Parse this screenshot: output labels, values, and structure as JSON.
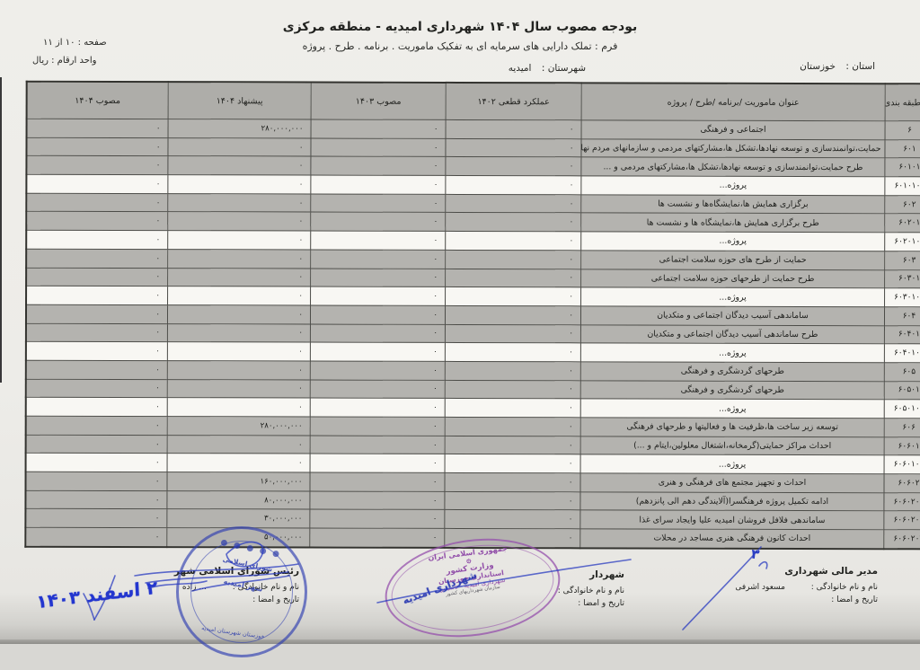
{
  "page": {
    "title": "بودجه مصوب سال ۱۴۰۴ شهرداری امیدیه - منطقه مرکزی",
    "subtitle": "فرم : تملک دارایی های سرمایه ای به تفکیک ماموریت . برنامه . طرح . پروژه",
    "page_info": "صفحه : ۱۰ از ۱۱",
    "unit": "واحد ارقام : ریال",
    "province_label": "استان :",
    "province": "خوزستان",
    "county_label": "شهرستان :",
    "county": "امیدیه"
  },
  "table": {
    "headers": [
      {
        "key": "code",
        "label": "کد طبقه بندی"
      },
      {
        "key": "title",
        "label": "عنوان ماموریت /برنامه /طرح / پروژه"
      },
      {
        "key": "y1402",
        "label": "عملکرد قطعی ۱۴۰۲"
      },
      {
        "key": "y1403",
        "label": "مصوب ۱۴۰۳"
      },
      {
        "key": "proposed",
        "label": "پیشنهاد ۱۴۰۴"
      },
      {
        "key": "approved",
        "label": "مصوب ۱۴۰۴"
      }
    ],
    "rows": [
      {
        "code": "۶",
        "title": "اجتماعی و فرهنگی",
        "y1402": "۰",
        "y1403": "۰",
        "proposed": "۲۸۰,۰۰۰,۰۰۰",
        "approved": "۰",
        "white": false
      },
      {
        "code": "۶۰۱",
        "title": "حمایت،توانمندسازی و توسعه نهادها،تشکل ها،مشارکتهای مردمی و سازمانهای مردم نهاد",
        "y1402": "۰",
        "y1403": "۰",
        "proposed": "۰",
        "approved": "۰",
        "white": false
      },
      {
        "code": "۶۰۱۰۱",
        "title": "طرح حمایت،توانمندسازی و توسعه نهادها،تشکل ها،مشارکتهای مردمی و ...",
        "y1402": "۰",
        "y1403": "۰",
        "proposed": "۰",
        "approved": "۰",
        "white": false
      },
      {
        "code": "۶۰۱۰۱۰۱",
        "title": "پروژه...",
        "y1402": "۰",
        "y1403": "۰",
        "proposed": "۰",
        "approved": "۰",
        "white": true
      },
      {
        "code": "۶۰۲",
        "title": "برگزاری همایش ها،نمایشگاه‌ها و نشست ها",
        "y1402": "۰",
        "y1403": "۰",
        "proposed": "۰",
        "approved": "۰",
        "white": false
      },
      {
        "code": "۶۰۲۰۱",
        "title": "طرح برگزاری همایش ها،نمایشگاه ها و نشست ها",
        "y1402": "۰",
        "y1403": "۰",
        "proposed": "۰",
        "approved": "۰",
        "white": false
      },
      {
        "code": "۶۰۲۰۱۰۱",
        "title": "پروژه...",
        "y1402": "۰",
        "y1403": "۰",
        "proposed": "۰",
        "approved": "۰",
        "white": true
      },
      {
        "code": "۶۰۳",
        "title": "حمایت از طرح های حوزه سلامت اجتماعی",
        "y1402": "۰",
        "y1403": "۰",
        "proposed": "۰",
        "approved": "۰",
        "white": false
      },
      {
        "code": "۶۰۳۰۱",
        "title": "طرح حمایت از طرحهای حوزه سلامت اجتماعی",
        "y1402": "۰",
        "y1403": "۰",
        "proposed": "۰",
        "approved": "۰",
        "white": false
      },
      {
        "code": "۶۰۳۰۱۰۱",
        "title": "پروژه...",
        "y1402": "۰",
        "y1403": "۰",
        "proposed": "۰",
        "approved": "۰",
        "white": true
      },
      {
        "code": "۶۰۴",
        "title": "ساماندهی آسیب دیدگان اجتماعی و متکدیان",
        "y1402": "۰",
        "y1403": "۰",
        "proposed": "۰",
        "approved": "۰",
        "white": false
      },
      {
        "code": "۶۰۴۰۱",
        "title": "طرح ساماندهی آسیب دیدگان اجتماعی و متکدیان",
        "y1402": "۰",
        "y1403": "۰",
        "proposed": "۰",
        "approved": "۰",
        "white": false
      },
      {
        "code": "۶۰۴۰۱۰۱",
        "title": "پروژه...",
        "y1402": "۰",
        "y1403": "۰",
        "proposed": "۰",
        "approved": "۰",
        "white": true
      },
      {
        "code": "۶۰۵",
        "title": "طرحهای گردشگری و فرهنگی",
        "y1402": "۰",
        "y1403": "۰",
        "proposed": "۰",
        "approved": "۰",
        "white": false
      },
      {
        "code": "۶۰۵۰۱",
        "title": "طرحهای گردشگری و فرهنگی",
        "y1402": "۰",
        "y1403": "۰",
        "proposed": "۰",
        "approved": "۰",
        "white": false
      },
      {
        "code": "۶۰۵۰۱۰۱",
        "title": "پروژه...",
        "y1402": "۰",
        "y1403": "۰",
        "proposed": "۰",
        "approved": "۰",
        "white": true
      },
      {
        "code": "۶۰۶",
        "title": "توسعه زیر ساخت ها،ظرفیت ها و فعالیتها و طرحهای فرهنگی",
        "y1402": "۰",
        "y1403": "۰",
        "proposed": "۲۸۰,۰۰۰,۰۰۰",
        "approved": "۰",
        "white": false
      },
      {
        "code": "۶۰۶۰۱",
        "title": "احداث مراکز حمایتی(گرمخانه،اشتغال معلولین،ایتام و ...)",
        "y1402": "۰",
        "y1403": "۰",
        "proposed": "۰",
        "approved": "۰",
        "white": false
      },
      {
        "code": "۶۰۶۰۱۰۱",
        "title": "پروژه...",
        "y1402": "۰",
        "y1403": "۰",
        "proposed": "۰",
        "approved": "۰",
        "white": true
      },
      {
        "code": "۶۰۶۰۲",
        "title": "احداث و تجهیز مجتمع های فرهنگی و هنری",
        "y1402": "۰",
        "y1403": "۰",
        "proposed": "۱۶۰,۰۰۰,۰۰۰",
        "approved": "۰",
        "white": false
      },
      {
        "code": "۶۰۶۰۲۰۱",
        "title": "ادامه تکمیل پروژه فرهنگسرا(آلایندگی دهم الی پانزدهم)",
        "y1402": "۰",
        "y1403": "۰",
        "proposed": "۸۰,۰۰۰,۰۰۰",
        "approved": "۰",
        "white": false
      },
      {
        "code": "۶۰۶۰۲۰۲",
        "title": "ساماندهی فلافل فروشان امیدیه علیا وایجاد سرای غذا",
        "y1402": "۰",
        "y1403": "۰",
        "proposed": "۳۰,۰۰۰,۰۰۰",
        "approved": "۰",
        "white": false
      },
      {
        "code": "۶۰۶۰۲۰۳",
        "title": "احداث کانون فرهنگی هنری مساجد در محلات",
        "y1402": "۰",
        "y1403": "۰",
        "proposed": "۵۰,۰۰۰,۰۰۰",
        "approved": "۰",
        "white": false
      }
    ]
  },
  "signatures": {
    "financial": {
      "role": "مدیر مالی شهرداری",
      "name_label": "نام و نام خانوادگی :",
      "name": "مسعود اشرفی",
      "date_label": "تاریخ و امضا :"
    },
    "mayor": {
      "role": "شهردار",
      "name_label": "نام و نام خانوادگی :",
      "name": "",
      "date_label": "تاریخ و امضا :"
    },
    "council": {
      "role": "رئیس شورای اسلامی شهر",
      "name_label": "نام و نام خانوادگی :",
      "name": "... زاده",
      "date_label": "تاریخ و امضا :"
    }
  },
  "stamps": {
    "council": {
      "line1": "شورای اسلامی",
      "line2": "شهر امیدیه",
      "arc_bottom": "خوزستان شهرستان امیدیه",
      "people_glyphs": "● ● ● ● ●"
    },
    "ministry": {
      "country": "جمهوری اسلامی ایران",
      "emblem": "۞",
      "ministry": "وزارت کشور",
      "governorate": "استانداری خوزستان",
      "city": "شهرداری امیدیه - تأسیس",
      "org": "سازمان شهرداریهای کشور"
    },
    "overlay": "شهرداری امیدیه",
    "date_note": "۲ اسفند ۱۴۰۳",
    "annotation_mark": "۳"
  },
  "colors": {
    "stamp_blue": "#2b3ab0",
    "stamp_purple": "#9150a8",
    "ink_blue": "#2336cf",
    "row_gray": "#b4b3af",
    "row_white": "#f8f7f3",
    "paper": "#edece8"
  }
}
